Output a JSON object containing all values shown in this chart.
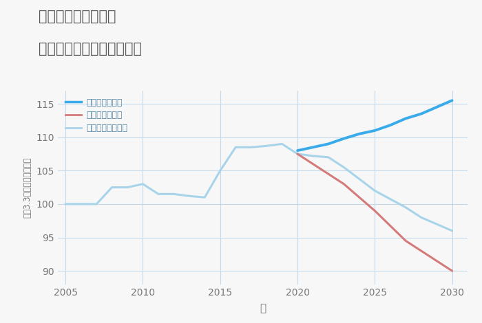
{
  "title_line1": "岐阜県関市下之保の",
  "title_line2": "中古マンションの価格推移",
  "xlabel": "年",
  "ylabel": "坪（3.3㎡）単価（万円）",
  "background_color": "#f7f7f7",
  "plot_background": "#f7f7f7",
  "normal_scenario": {
    "label": "ノーマルシナリオ",
    "color": "#a8d4ea",
    "linewidth": 2.2,
    "years": [
      2005,
      2006,
      2007,
      2008,
      2009,
      2010,
      2011,
      2012,
      2013,
      2014,
      2015,
      2016,
      2017,
      2018,
      2019,
      2020,
      2021,
      2022,
      2023,
      2025,
      2027,
      2028,
      2030
    ],
    "values": [
      100,
      100,
      100,
      102.5,
      102.5,
      103,
      101.5,
      101.5,
      101.2,
      101,
      105,
      108.5,
      108.5,
      108.7,
      109.0,
      107.5,
      107.2,
      107.0,
      105.5,
      102,
      99.5,
      98,
      96
    ]
  },
  "good_scenario": {
    "label": "グッドシナリオ",
    "color": "#3aabea",
    "linewidth": 2.8,
    "years": [
      2020,
      2021,
      2022,
      2023,
      2024,
      2025,
      2026,
      2027,
      2028,
      2029,
      2030
    ],
    "values": [
      108.0,
      108.5,
      109.0,
      109.8,
      110.5,
      111.0,
      111.8,
      112.8,
      113.5,
      114.5,
      115.5
    ]
  },
  "bad_scenario": {
    "label": "バッドシナリオ",
    "color": "#d47a7a",
    "linewidth": 2.2,
    "years": [
      2020,
      2023,
      2025,
      2027,
      2030
    ],
    "values": [
      107.5,
      103.0,
      99.0,
      94.5,
      90.0
    ]
  },
  "ylim": [
    88,
    117
  ],
  "xlim": [
    2004.5,
    2031
  ],
  "yticks": [
    90,
    95,
    100,
    105,
    110,
    115
  ],
  "xticks": [
    2005,
    2010,
    2015,
    2020,
    2025,
    2030
  ],
  "grid_color": "#c5d8e8",
  "title_color": "#555555",
  "tick_color": "#777777",
  "legend_color": "#5588aa"
}
